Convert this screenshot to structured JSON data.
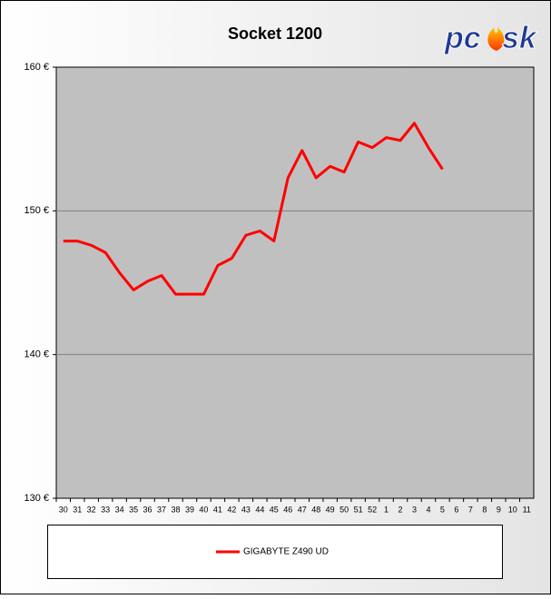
{
  "chart_data": {
    "type": "line",
    "title": "Socket 1200",
    "logo": {
      "left": "pc",
      "right": "sk"
    },
    "categories": [
      "30",
      "31",
      "32",
      "33",
      "34",
      "35",
      "36",
      "37",
      "38",
      "39",
      "40",
      "41",
      "42",
      "43",
      "44",
      "45",
      "46",
      "47",
      "48",
      "49",
      "50",
      "51",
      "52",
      "1",
      "2",
      "3",
      "4",
      "5",
      "6",
      "7",
      "8",
      "9",
      "10",
      "11"
    ],
    "series": [
      {
        "name": "GIGABYTE Z490 UD",
        "color": "#ff0000",
        "values": [
          147.9,
          147.9,
          147.6,
          147.1,
          145.7,
          144.5,
          145.1,
          145.5,
          144.2,
          144.2,
          144.2,
          146.2,
          146.7,
          148.3,
          148.6,
          147.9,
          152.3,
          154.2,
          152.3,
          153.1,
          152.7,
          154.8,
          154.4,
          155.1,
          154.9,
          156.1,
          154.4,
          152.9,
          null,
          null,
          null,
          null,
          null,
          null
        ]
      }
    ],
    "ylim": [
      130,
      160
    ],
    "yticks": [
      {
        "value": 130,
        "label": "130 €"
      },
      {
        "value": 140,
        "label": "140 €"
      },
      {
        "value": 150,
        "label": "150 €"
      },
      {
        "value": 160,
        "label": "160 €"
      }
    ],
    "grid": true,
    "plot_background": "#c0c0c0"
  }
}
